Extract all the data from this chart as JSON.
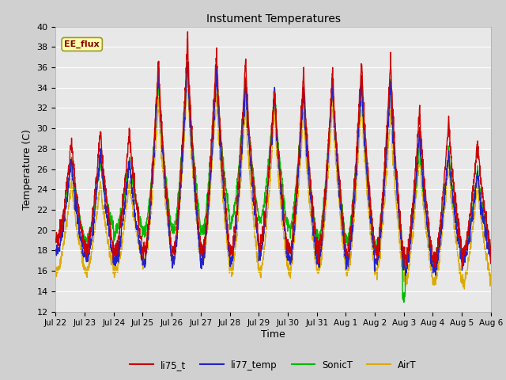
{
  "title": "Instument Temperatures",
  "ylabel": "Temperature (C)",
  "xlabel": "Time",
  "ylim": [
    12,
    40
  ],
  "yticks": [
    12,
    14,
    16,
    18,
    20,
    22,
    24,
    26,
    28,
    30,
    32,
    34,
    36,
    38,
    40
  ],
  "fig_bg": "#d0d0d0",
  "plot_bg": "#e8e8e8",
  "colors": {
    "li75_t": "#cc0000",
    "li77_temp": "#2222cc",
    "SonicT": "#00bb00",
    "AirT": "#ddaa00"
  },
  "annotation_text": "EE_flux",
  "annotation_bg": "#ffffaa",
  "annotation_border": "#999933",
  "x_tick_labels": [
    "Jul 22",
    "Jul 23",
    "Jul 24",
    "Jul 25",
    "Jul 26",
    "Jul 27",
    "Jul 28",
    "Jul 29",
    "Jul 30",
    "Jul 31",
    "Aug 1",
    "Aug 2",
    "Aug 3",
    "Aug 4",
    "Aug 5",
    "Aug 6"
  ],
  "n_days": 15,
  "pts_per_day": 144
}
